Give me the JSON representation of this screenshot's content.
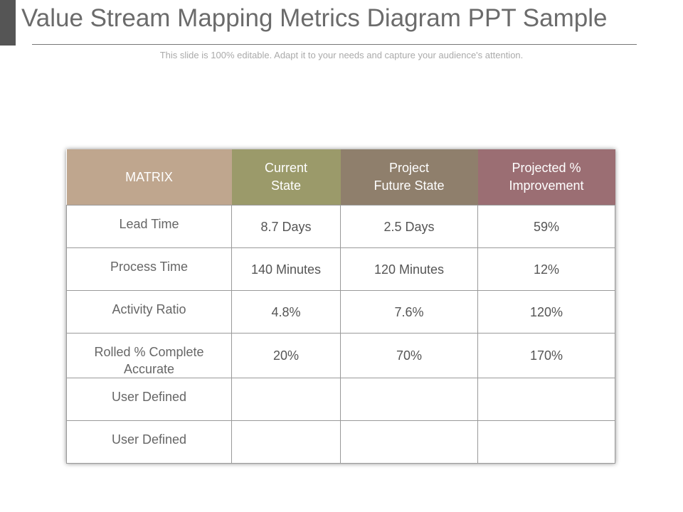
{
  "header": {
    "title": "Value Stream Mapping Metrics Diagram PPT Sample",
    "subtitle": "This slide is 100% editable. Adapt it to your needs and capture your audience's attention."
  },
  "table": {
    "columns": [
      "MATRIX",
      "Current\nState",
      "Project\nFuture State",
      "Projected %\nImprovement"
    ],
    "rows": [
      [
        "Lead Time",
        "8.7 Days",
        "2.5 Days",
        "59%"
      ],
      [
        "Process Time",
        "140 Minutes",
        "120 Minutes",
        "12%"
      ],
      [
        "Activity Ratio",
        "4.8%",
        "7.6%",
        "120%"
      ],
      [
        "Rolled % Complete\nAccurate",
        "20%",
        "70%",
        "170%"
      ],
      [
        "User Defined"
      ],
      [
        "User Defined"
      ]
    ]
  }
}
